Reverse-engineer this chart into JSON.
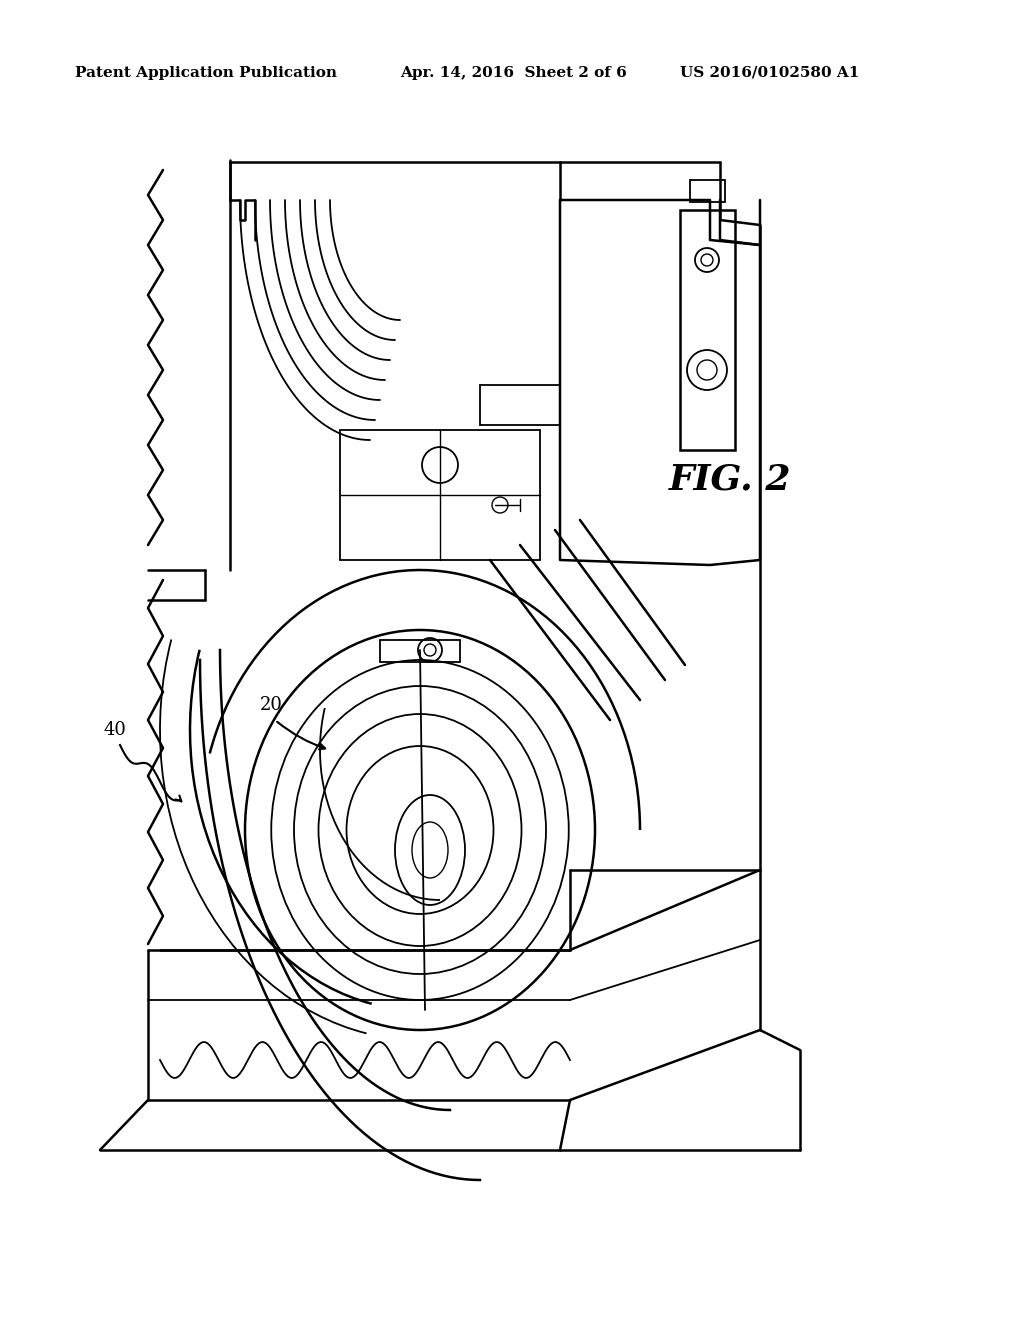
{
  "background_color": "#ffffff",
  "header_left": "Patent Application Publication",
  "header_center": "Apr. 14, 2016  Sheet 2 of 6",
  "header_right": "US 2016/0102580 A1",
  "fig_label": "FIG. 2",
  "label_20": "20",
  "label_40": "40",
  "header_fontsize": 11,
  "fig_label_fontsize": 26,
  "line_color": "#000000"
}
